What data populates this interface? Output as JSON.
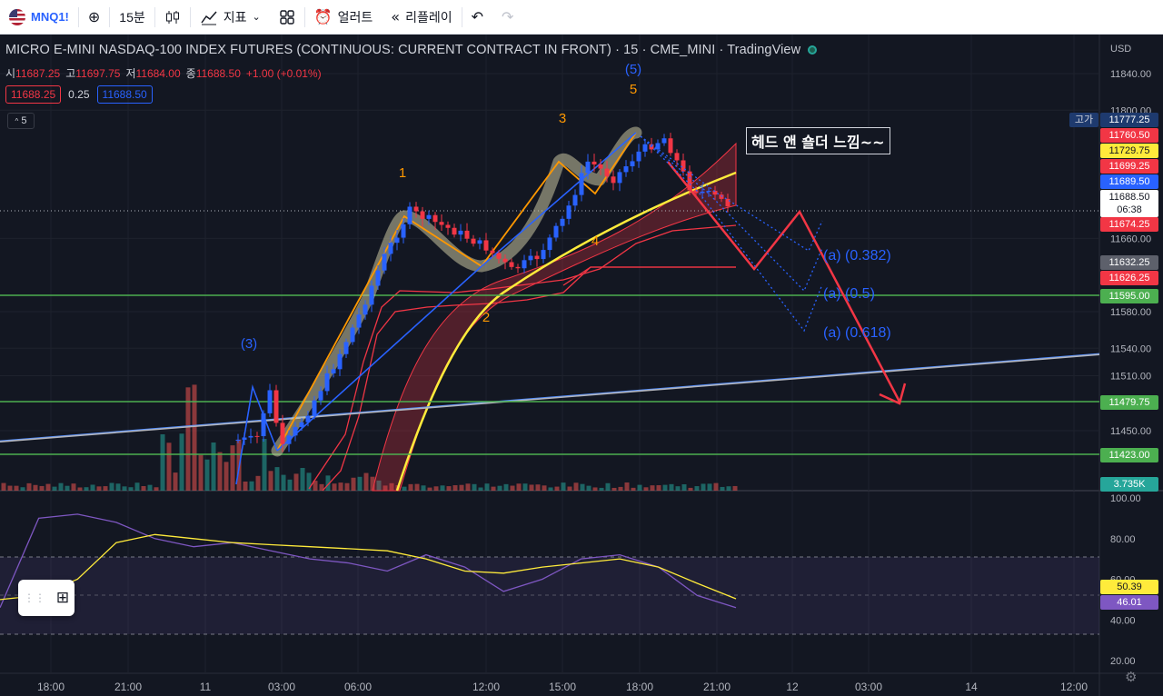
{
  "toolbar": {
    "symbol": "MNQ1!",
    "add_icon": "plus-circle-icon",
    "interval": "15분",
    "bar_type_icon": "candles-icon",
    "indicators_label": "지표",
    "alert_label": "얼러트",
    "replay_label": "리플레이"
  },
  "legend": {
    "title": "MICRO E-MINI NASDAQ-100 INDEX FUTURES (CONTINUOUS: CURRENT CONTRACT IN FRONT) · 15 · CME_MINI · TradingView",
    "open_label": "시",
    "open": "11687.25",
    "high_label": "고",
    "high": "11697.75",
    "low_label": "저",
    "low": "11684.00",
    "close_label": "종",
    "close": "11688.50",
    "change": "+1.00 (+0.01%)",
    "bid": "11688.25",
    "spread": "0.25",
    "ask": "11688.50",
    "indicator_count": "5"
  },
  "price_axis": {
    "currency": "USD",
    "ticks": [
      "11840.00",
      "11800.00",
      "11660.00",
      "11580.00",
      "11540.00",
      "11510.00",
      "11450.00"
    ],
    "tags": [
      {
        "text": "11777.25",
        "color": "#1e3a6e"
      },
      {
        "text": "11760.50",
        "color": "#f23645"
      },
      {
        "text": "11729.75",
        "color": "#ffeb3b"
      },
      {
        "text": "11699.25",
        "color": "#f23645"
      },
      {
        "text": "11689.50",
        "color": "#2962ff"
      },
      {
        "text": "11674.25",
        "color": "#f23645"
      },
      {
        "text": "11632.25",
        "color": "#5d606b"
      },
      {
        "text": "11626.25",
        "color": "#f23645"
      },
      {
        "text": "11595.00",
        "color": "#4caf50"
      },
      {
        "text": "11479.75",
        "color": "#4caf50"
      },
      {
        "text": "11423.00",
        "color": "#4caf50"
      }
    ],
    "last_price": "11688.50",
    "countdown": "06:38",
    "high_tag_label": "고가",
    "volume_tag": "3.735K"
  },
  "rsi_axis": {
    "ticks": [
      "100.00",
      "80.00",
      "60.00",
      "40.00",
      "20.00"
    ],
    "ma_tag": "50.39",
    "rsi_tag": "46.01"
  },
  "annotations": {
    "note": "헤드 앤 숄더 느낌~~",
    "wave_labels": [
      "(3)",
      "1",
      "2",
      "3",
      "4",
      "5",
      "(5)"
    ],
    "fib_labels": [
      "(a) (0.382)",
      "(a) (0.5)",
      "(a) (0.618)"
    ]
  },
  "time_axis": [
    "18:00",
    "21:00",
    "11",
    "03:00",
    "06:00",
    "12:00",
    "15:00",
    "18:00",
    "21:00",
    "12",
    "03:00",
    "14",
    "12:00"
  ],
  "chart_data": [
    {
      "type": "candlestick",
      "symbol": "MNQ1!",
      "interval": "15",
      "price_range": [
        11370,
        11860
      ],
      "horizontal_levels": [
        11595.0,
        11479.75,
        11423.0
      ],
      "close_path": [
        {
          "t": "11 02:00",
          "close": 11440
        },
        {
          "t": "11 02:30",
          "close": 11495
        },
        {
          "t": "11 03:00",
          "close": 11430
        },
        {
          "t": "11 04:00",
          "close": 11470
        },
        {
          "t": "11 05:00",
          "close": 11520
        },
        {
          "t": "11 06:00",
          "close": 11575
        },
        {
          "t": "11 07:00",
          "close": 11640
        },
        {
          "t": "11 08:00",
          "close": 11690
        },
        {
          "t": "11 10:00",
          "close": 11665
        },
        {
          "t": "11 11:00",
          "close": 11650
        },
        {
          "t": "11 12:00",
          "close": 11625
        },
        {
          "t": "11 13:00",
          "close": 11640
        },
        {
          "t": "11 14:00",
          "close": 11680
        },
        {
          "t": "11 15:00",
          "close": 11745
        },
        {
          "t": "11 16:00",
          "close": 11725
        },
        {
          "t": "11 17:00",
          "close": 11755
        },
        {
          "t": "11 18:00",
          "close": 11770
        },
        {
          "t": "11 19:00",
          "close": 11715
        },
        {
          "t": "11 20:00",
          "close": 11705
        },
        {
          "t": "11 21:00",
          "close": 11688.5
        }
      ]
    },
    {
      "type": "line",
      "name": "RSI",
      "ylim": [
        20,
        100
      ],
      "levels": [
        70,
        50,
        30
      ],
      "rsi": [
        46,
        90,
        92,
        88,
        80,
        76,
        78,
        74,
        70,
        68,
        64,
        72,
        66,
        54,
        60,
        70,
        72,
        66,
        52,
        46
      ],
      "rsi_ma": [
        50,
        52,
        60,
        78,
        82,
        80,
        78,
        77,
        76,
        75,
        74,
        70,
        64,
        63,
        66,
        68,
        70,
        66,
        58,
        50.39
      ]
    }
  ]
}
